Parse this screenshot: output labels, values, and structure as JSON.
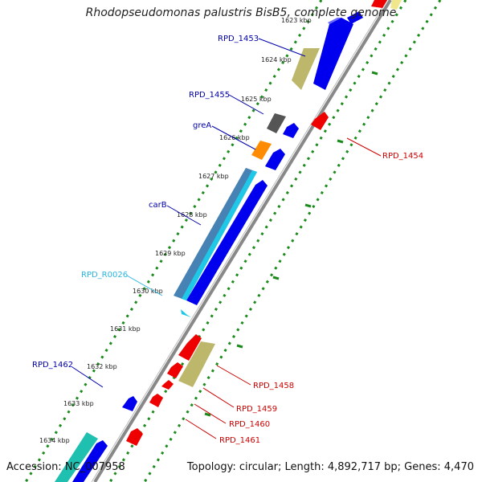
{
  "title": "Rhodopseudomonas palustris BisB5, complete genome",
  "footer": {
    "accession": "Accession: NC_007958",
    "topology": "Topology: circular; Length: 4,892,717 bp; Genes: 4,470"
  },
  "colors": {
    "blue_gene": "#0000ee",
    "red_gene": "#ee0000",
    "khaki_gene": "#bdb76b",
    "grey_gene": "#555555",
    "orange_gene": "#ff8c00",
    "cyan_gene": "#1ec8e6",
    "teal_gene": "#20c0b0",
    "steel_gene": "#4682b4",
    "backbone": "#808080",
    "tick_green": "#1a8a1a",
    "label_blue": "#0000aa",
    "label_red": "#cc0000",
    "label_cyan": "#2ab5e0"
  },
  "kbp_labels": [
    "1623 kbp",
    "1624 kbp",
    "1625 kbp",
    "1626 kbp",
    "1627 kbp",
    "1628 kbp",
    "1629 kbp",
    "1630 kbp",
    "1631 kbp",
    "1632 kbp",
    "1633 kbp",
    "1634 kbp"
  ],
  "gene_labels": {
    "rpd1453": "RPD_1453",
    "rpd1455": "RPD_1455",
    "greA": "greA",
    "carB": "carB",
    "rpd0026": "RPD_R0026",
    "rpd1462": "RPD_1462",
    "rpd1454": "RPD_1454",
    "rpd1458": "RPD_1458",
    "rpd1459": "RPD_1459",
    "rpd1460": "RPD_1460",
    "rpd1461": "RPD_1461"
  }
}
